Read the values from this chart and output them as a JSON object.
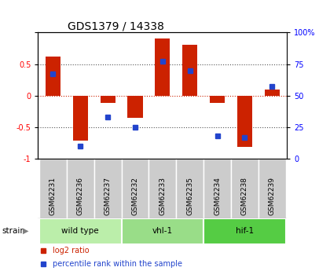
{
  "title": "GDS1379 / 14338",
  "samples": [
    "GSM62231",
    "GSM62236",
    "GSM62237",
    "GSM62232",
    "GSM62233",
    "GSM62235",
    "GSM62234",
    "GSM62238",
    "GSM62239"
  ],
  "log2_ratio": [
    0.62,
    -0.72,
    -0.12,
    -0.35,
    0.9,
    0.8,
    -0.12,
    -0.82,
    0.1
  ],
  "percentile_rank": [
    67,
    10,
    33,
    25,
    77,
    70,
    18,
    17,
    57
  ],
  "groups": [
    {
      "label": "wild type",
      "start": 0,
      "end": 3,
      "color": "#bbeeaa"
    },
    {
      "label": "vhl-1",
      "start": 3,
      "end": 6,
      "color": "#99dd88"
    },
    {
      "label": "hif-1",
      "start": 6,
      "end": 9,
      "color": "#55cc44"
    }
  ],
  "bar_color": "#cc2200",
  "dot_color": "#2244cc",
  "ylim": [
    -1,
    1
  ],
  "yticks": [
    -1,
    -0.5,
    0,
    0.5,
    1
  ],
  "ytick_labels": [
    "-1",
    "-0.5",
    "0",
    "0.5",
    ""
  ],
  "right_yticks": [
    0,
    25,
    50,
    75,
    100
  ],
  "right_ytick_labels": [
    "0",
    "25",
    "50",
    "75",
    "100%"
  ],
  "right_ylim": [
    0,
    100
  ],
  "background_color": "#ffffff",
  "plot_bg": "#ffffff",
  "grid_color": "#555555",
  "zero_line_color": "#cc2200",
  "bar_width": 0.55,
  "label_bg": "#cccccc",
  "label_divider": "#ffffff"
}
